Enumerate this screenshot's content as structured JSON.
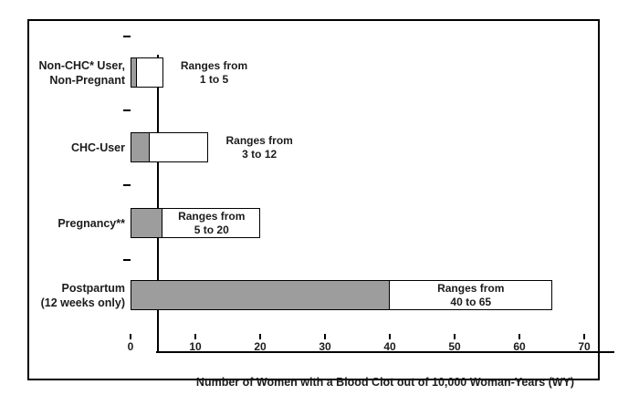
{
  "chart_data": {
    "type": "bar",
    "orientation": "horizontal",
    "title": "",
    "xlabel": "Number of Women with a Blood Clot out of 10,000 Woman-Years (WY)",
    "ylabel": "",
    "xlim": [
      0,
      70
    ],
    "xticks": [
      0,
      10,
      20,
      30,
      40,
      50,
      60,
      70
    ],
    "grid": false,
    "colors": {
      "low_segment_fill": "#9d9d9d",
      "high_segment_fill": "#ffffff",
      "line_and_text": "#000000",
      "background": "#ffffff"
    },
    "categories": [
      {
        "label_lines": [
          "Non-CHC* User,",
          "Non-Pregnant"
        ],
        "range_low": 1,
        "range_high": 5,
        "annotation_lines": [
          "Ranges from",
          "1 to 5"
        ],
        "annotation_placement": "outside-right"
      },
      {
        "label_lines": [
          "CHC-User"
        ],
        "range_low": 3,
        "range_high": 12,
        "annotation_lines": [
          "Ranges from",
          "3 to 12"
        ],
        "annotation_placement": "outside-right"
      },
      {
        "label_lines": [
          "Pregnancy**"
        ],
        "range_low": 5,
        "range_high": 20,
        "annotation_lines": [
          "Ranges from",
          "5 to 20"
        ],
        "annotation_placement": "inside-high-segment"
      },
      {
        "label_lines": [
          "Postpartum",
          "(12 weeks only)"
        ],
        "range_low": 40,
        "range_high": 65,
        "annotation_lines": [
          "Ranges from",
          "40 to 65"
        ],
        "annotation_placement": "inside-high-segment"
      }
    ]
  }
}
